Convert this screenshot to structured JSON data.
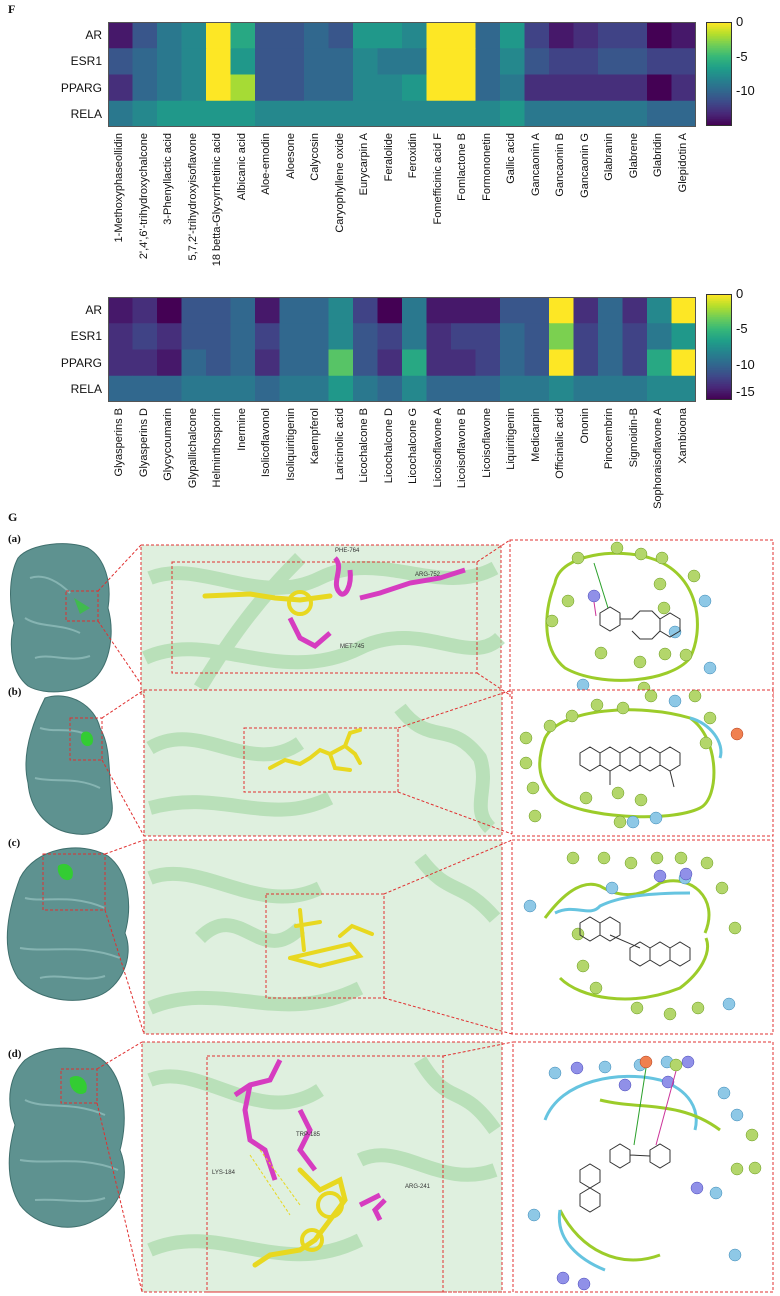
{
  "figure": {
    "panel_f_label": "F",
    "panel_g_label": "G",
    "subpanels": [
      "(a)",
      "(b)",
      "(c)",
      "(d)"
    ]
  },
  "chart_data": [
    {
      "type": "heatmap",
      "rows": [
        "AR",
        "ESR1",
        "PPARG",
        "RELA"
      ],
      "columns": [
        "1-Methoxyphaseollidin",
        "2',4',6'-trihydroxychalcone",
        "3-Phenyllactic acid",
        "5,7,2'-trihydroxyisoflavone",
        "18 betta-Glycyrrhetinic acid",
        "Albicanic acid",
        "Aloe-emodin",
        "Aloesone",
        "Calycosin",
        "Caryophyllene oxide",
        "Eurycarpin A",
        "Feralolide",
        "Feroxidin",
        "Fomefficinic acid F",
        "Fomlactone B",
        "Formononetin",
        "Gallic acid",
        "Gancaonin A",
        "Gancaonin B",
        "Gancaonin G",
        "Glabranin",
        "Glabrene",
        "Glabridin",
        "Glepidotin A"
      ],
      "values": [
        [
          -14,
          -11,
          -9,
          -8,
          0,
          -6,
          -11,
          -11,
          -10,
          -11,
          -7,
          -7,
          -8,
          0,
          0,
          -10,
          -7,
          -12,
          -14,
          -13,
          -12,
          -12,
          -15,
          -14
        ],
        [
          -11,
          -10,
          -9,
          -8,
          0,
          -7,
          -11,
          -11,
          -10,
          -10,
          -8,
          -9,
          -9,
          0,
          0,
          -10,
          -8,
          -11,
          -12,
          -12,
          -11,
          -11,
          -12,
          -12
        ],
        [
          -13,
          -10,
          -9,
          -8,
          0,
          -2,
          -11,
          -11,
          -10,
          -10,
          -8,
          -8,
          -7,
          0,
          0,
          -10,
          -9,
          -13,
          -13,
          -13,
          -13,
          -13,
          -15,
          -13
        ],
        [
          -9,
          -8,
          -7,
          -7,
          -7,
          -7,
          -8,
          -8,
          -8,
          -8,
          -8,
          -8,
          -8,
          -8,
          -8,
          -8,
          -7,
          -9,
          -9,
          -9,
          -9,
          -9,
          -10,
          -10
        ]
      ],
      "colorbar": {
        "ticks": [
          "0",
          "-5",
          "-10"
        ],
        "range": [
          -15,
          0
        ],
        "colormap": "viridis"
      }
    },
    {
      "type": "heatmap",
      "rows": [
        "AR",
        "ESR1",
        "PPARG",
        "RELA"
      ],
      "columns": [
        "Glyasperins B",
        "Glyasperins D",
        "Glycycoumarin",
        "Glypallichalcone",
        "Helminthosporin",
        "Inermine",
        "Isolicoflavonol",
        "Isoliquiritigenin",
        "Kaempferol",
        "Laricinolic acid",
        "Licochalcone B",
        "Licochalcone D",
        "Licochalcone G",
        "Licoisoflavone A",
        "Licoisoflavone B",
        "Licoisoflavone",
        "Liquiritigenin",
        "Medicarpin",
        "Officinalic acid",
        "Ononin",
        "Pinocembrin",
        "Sigmoidin-B",
        "Sophoraisoflavone A",
        "Xambioona"
      ],
      "values": [
        [
          -14,
          -13,
          -15,
          -11,
          -11,
          -10,
          -14,
          -10,
          -10,
          -8,
          -12,
          -15,
          -9,
          -14,
          -14,
          -14,
          -11,
          -11,
          0,
          -13,
          -10,
          -13,
          -8,
          0
        ],
        [
          -13,
          -12,
          -13,
          -11,
          -11,
          -10,
          -12,
          -10,
          -10,
          -8,
          -11,
          -12,
          -9,
          -13,
          -12,
          -12,
          -10,
          -11,
          -3,
          -12,
          -10,
          -12,
          -9,
          -7
        ],
        [
          -13,
          -13,
          -14,
          -10,
          -11,
          -10,
          -13,
          -10,
          -10,
          -4,
          -11,
          -13,
          -6,
          -13,
          -13,
          -12,
          -10,
          -11,
          0,
          -12,
          -10,
          -12,
          -6,
          0
        ],
        [
          -10,
          -10,
          -10,
          -9,
          -9,
          -9,
          -10,
          -9,
          -9,
          -7,
          -9,
          -10,
          -8,
          -10,
          -10,
          -10,
          -9,
          -9,
          -8,
          -9,
          -9,
          -9,
          -8,
          -8
        ]
      ],
      "colorbar": {
        "ticks": [
          "0",
          "-5",
          "-10",
          "-15"
        ],
        "range": [
          -15,
          0
        ],
        "colormap": "viridis"
      }
    }
  ],
  "docking": {
    "a_residues": [
      "PHE-764",
      "ARG-752",
      "MET-745"
    ],
    "d_residues": [
      "TRP-185",
      "LYS-184",
      "ARG-241"
    ],
    "colors": {
      "protein": "#a8d9a8",
      "ligand": "#e8d820",
      "residue": "#d63cc0",
      "surface": "#5e9290",
      "pocket": "#33cc33",
      "box": "#e03030"
    }
  }
}
